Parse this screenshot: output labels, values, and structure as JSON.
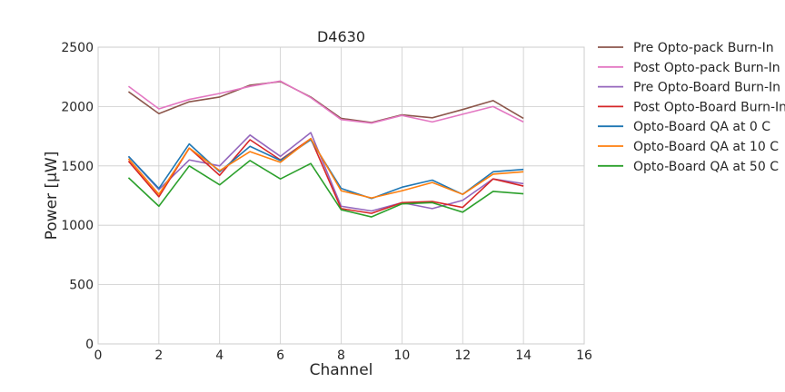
{
  "chart_data": {
    "type": "line",
    "title": "D4630",
    "xlabel": "Channel",
    "ylabel": "Power [μW]",
    "xlim": [
      0,
      16
    ],
    "ylim": [
      0,
      2500
    ],
    "xticks": [
      0,
      2,
      4,
      6,
      8,
      10,
      12,
      14,
      16
    ],
    "yticks": [
      0,
      500,
      1000,
      1500,
      2000,
      2500
    ],
    "grid": true,
    "legend_position": "outside-right-top",
    "x": [
      1,
      2,
      3,
      4,
      5,
      6,
      7,
      8,
      9,
      10,
      11,
      12,
      13,
      14
    ],
    "series": [
      {
        "name": "Pre Opto-pack Burn-In",
        "color": "#8c564b",
        "values": [
          2125,
          1940,
          2040,
          2080,
          2180,
          2210,
          2080,
          1900,
          1865,
          1930,
          1905,
          1975,
          2050,
          1900
        ]
      },
      {
        "name": "Post Opto-pack Burn-In",
        "color": "#e377c2",
        "values": [
          2170,
          1980,
          2060,
          2110,
          2170,
          2215,
          2075,
          1890,
          1860,
          1925,
          1870,
          1935,
          2000,
          1870
        ]
      },
      {
        "name": "Pre Opto-Board Burn-In",
        "color": "#9467bd",
        "values": [
          1580,
          1300,
          1550,
          1500,
          1760,
          1580,
          1780,
          1160,
          1120,
          1190,
          1140,
          1210,
          1390,
          1350
        ]
      },
      {
        "name": "Post Opto-Board Burn-In",
        "color": "#d62728",
        "values": [
          1540,
          1240,
          1650,
          1420,
          1720,
          1550,
          1730,
          1140,
          1100,
          1190,
          1200,
          1150,
          1390,
          1330
        ]
      },
      {
        "name": "Opto-Board QA at 0 C",
        "color": "#1f77b4",
        "values": [
          1580,
          1310,
          1685,
          1450,
          1665,
          1545,
          1720,
          1310,
          1225,
          1320,
          1380,
          1260,
          1450,
          1470
        ]
      },
      {
        "name": "Opto-Board QA at 10 C",
        "color": "#ff7f0e",
        "values": [
          1560,
          1260,
          1650,
          1460,
          1620,
          1530,
          1730,
          1290,
          1230,
          1290,
          1360,
          1260,
          1430,
          1450
        ]
      },
      {
        "name": "Opto-Board QA at 50 C",
        "color": "#2ca02c",
        "values": [
          1400,
          1160,
          1500,
          1340,
          1545,
          1390,
          1520,
          1130,
          1070,
          1180,
          1190,
          1110,
          1285,
          1265
        ]
      }
    ]
  }
}
